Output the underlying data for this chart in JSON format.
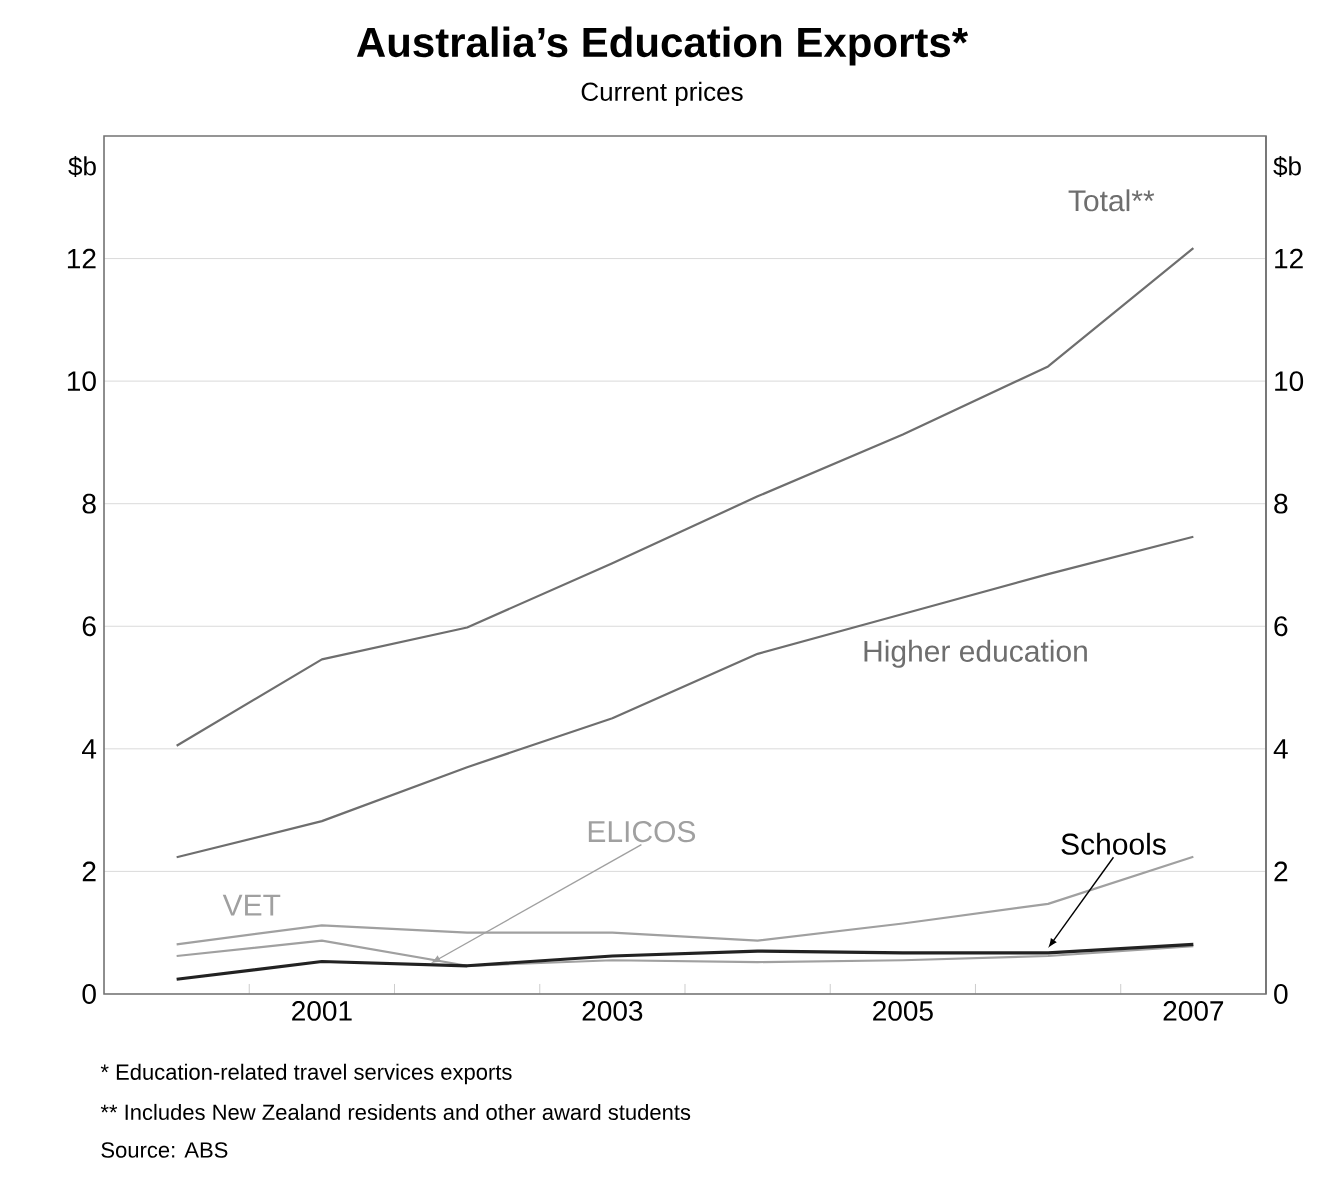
{
  "chart_data": {
    "type": "line",
    "title": "Australia’s Education Exports*",
    "subtitle": "Current prices",
    "ylabel": "$b",
    "y2label": "$b",
    "x": [
      2000,
      2001,
      2002,
      2003,
      2004,
      2005,
      2006,
      2007
    ],
    "xlim": [
      1999.5,
      2007.5
    ],
    "xticks": [
      {
        "value": 2000.5,
        "label": null
      },
      {
        "value": 2001,
        "label": "2001"
      },
      {
        "value": 2001.5,
        "label": null
      },
      {
        "value": 2002.5,
        "label": null
      },
      {
        "value": 2003,
        "label": "2003"
      },
      {
        "value": 2003.5,
        "label": null
      },
      {
        "value": 2004.5,
        "label": null
      },
      {
        "value": 2005,
        "label": "2005"
      },
      {
        "value": 2005.5,
        "label": null
      },
      {
        "value": 2006.5,
        "label": null
      },
      {
        "value": 2007,
        "label": "2007"
      }
    ],
    "ylim": [
      0,
      14
    ],
    "yticks": [
      0,
      2,
      4,
      6,
      8,
      10,
      12
    ],
    "y2lim": [
      0,
      14
    ],
    "y2ticks": [
      0,
      2,
      4,
      6,
      8,
      10,
      12
    ],
    "grid": "y",
    "marker": "none",
    "line_style": "solid",
    "series": [
      {
        "name": "Total**",
        "color": "#6e6e6e",
        "values": [
          4.05,
          5.46,
          5.98,
          7.03,
          8.12,
          9.13,
          10.24,
          12.17
        ]
      },
      {
        "name": "Higher education",
        "color": "#6e6e6e",
        "values": [
          2.23,
          2.82,
          3.7,
          4.5,
          5.55,
          6.2,
          6.85,
          7.46
        ]
      },
      {
        "name": "VET",
        "color": "#a0a0a0",
        "values": [
          0.81,
          1.12,
          1.0,
          1.0,
          0.87,
          1.15,
          1.47,
          2.24
        ]
      },
      {
        "name": "ELICOS",
        "color": "#a0a0a0",
        "values": [
          0.62,
          0.87,
          0.46,
          0.55,
          0.52,
          0.55,
          0.62,
          0.78
        ]
      },
      {
        "name": "Schools",
        "color": "#222222",
        "values": [
          0.24,
          0.53,
          0.46,
          0.62,
          0.7,
          0.67,
          0.67,
          0.81
        ]
      }
    ],
    "annotations": [
      "*   Education-related travel services exports",
      "**  Includes New Zealand residents and other award students",
      "Source: ABS"
    ]
  }
}
